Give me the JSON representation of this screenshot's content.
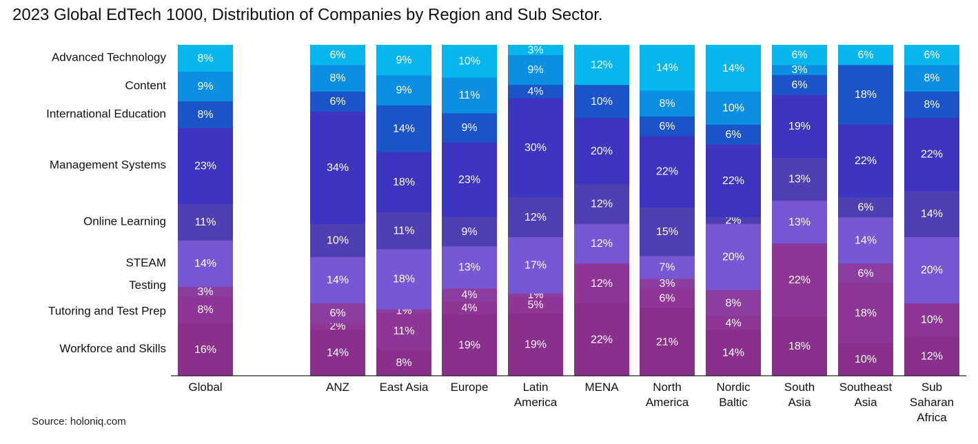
{
  "title": "2023 Global EdTech 1000, Distribution of Companies by Region and Sub Sector.",
  "source": "Source: holoniq.com",
  "chart_data": {
    "type": "bar",
    "stacked": true,
    "normalized_percent": true,
    "title": "2023 Global EdTech 1000, Distribution of Companies by Region and Sub Sector.",
    "xlabel": "",
    "ylabel": "",
    "ylim": [
      0,
      100
    ],
    "grid": false,
    "legend": "left",
    "categories": [
      "Global",
      "ANZ",
      "East Asia",
      "Europe",
      "Latin America",
      "MENA",
      "North America",
      "Nordic Baltic",
      "South Asia",
      "Southeast Asia",
      "Sub Saharan Africa"
    ],
    "category_labels": [
      [
        "Global"
      ],
      [
        "ANZ"
      ],
      [
        "East Asia"
      ],
      [
        "Europe"
      ],
      [
        "Latin",
        "America"
      ],
      [
        "MENA"
      ],
      [
        "North",
        "America"
      ],
      [
        "Nordic",
        "Baltic"
      ],
      [
        "South",
        "Asia"
      ],
      [
        "Southeast",
        "Asia"
      ],
      [
        "Sub",
        "Saharan",
        "Africa"
      ]
    ],
    "series": [
      {
        "name": "Workforce and Skills",
        "color": "#8a2f8c",
        "values": [
          16,
          14,
          8,
          19,
          19,
          22,
          21,
          14,
          18,
          10,
          12
        ]
      },
      {
        "name": "Tutoring and Test Prep",
        "color": "#8f3595",
        "values": [
          8,
          2,
          11,
          4,
          5,
          12,
          6,
          4,
          22,
          18,
          10
        ]
      },
      {
        "name": "Testing",
        "color": "#8c3da0",
        "values": [
          3,
          6,
          1,
          4,
          1,
          0,
          3,
          8,
          0,
          6,
          0
        ]
      },
      {
        "name": "STEAM",
        "color": "#7757d3",
        "values": [
          14,
          14,
          18,
          13,
          17,
          12,
          7,
          20,
          13,
          14,
          20
        ]
      },
      {
        "name": "Online Learning",
        "color": "#4e3fb2",
        "values": [
          11,
          10,
          11,
          9,
          12,
          12,
          15,
          2,
          13,
          6,
          14
        ]
      },
      {
        "name": "Management Systems",
        "color": "#3d34c2",
        "values": [
          23,
          34,
          18,
          23,
          30,
          20,
          22,
          22,
          19,
          22,
          22
        ]
      },
      {
        "name": "International Education",
        "color": "#1a54c8",
        "values": [
          8,
          6,
          14,
          9,
          4,
          10,
          6,
          6,
          6,
          18,
          8
        ]
      },
      {
        "name": "Content",
        "color": "#0c8fe0",
        "values": [
          9,
          8,
          9,
          11,
          9,
          0,
          8,
          10,
          3,
          0,
          8
        ]
      },
      {
        "name": "Advanced Technology",
        "color": "#08b6ee",
        "values": [
          8,
          6,
          9,
          10,
          3,
          12,
          14,
          14,
          6,
          6,
          6
        ]
      }
    ],
    "legend_order": [
      "Advanced Technology",
      "Content",
      "International Education",
      "Management Systems",
      "Online Learning",
      "STEAM",
      "Testing",
      "Tutoring and Test Prep",
      "Workforce and Skills"
    ]
  }
}
